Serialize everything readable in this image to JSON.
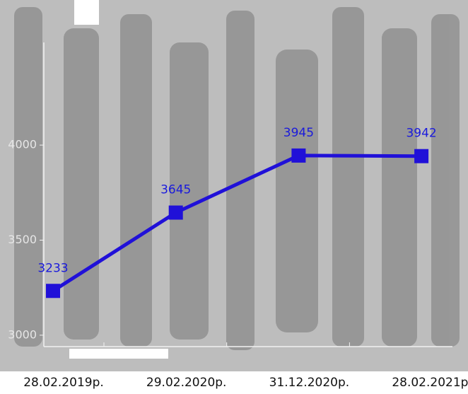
{
  "chart_data": {
    "type": "line",
    "categories": [
      "28.02.2019р.",
      "29.02.2020р.",
      "31.12.2020р.",
      "28.02.2021р."
    ],
    "series": [
      {
        "name": "",
        "color": "#2010d8",
        "values": [
          3233,
          3645,
          3945,
          3942
        ]
      }
    ],
    "ylim": [
      2940,
      4540
    ],
    "yticks": [
      3000,
      3500,
      4000
    ]
  }
}
